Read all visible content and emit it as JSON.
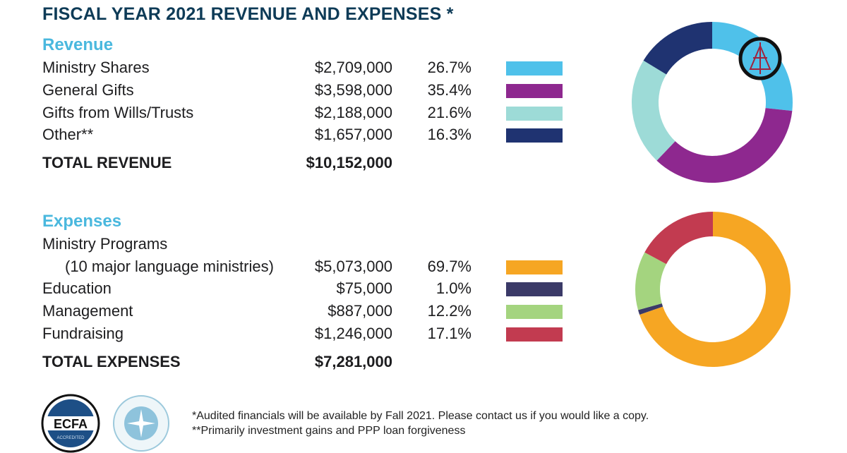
{
  "title": "FISCAL YEAR 2021 REVENUE AND EXPENSES *",
  "chart_data": [
    {
      "type": "pie",
      "title": "Revenue",
      "categories": [
        "Ministry Shares",
        "General Gifts",
        "Gifts from Wills/Trusts",
        "Other**"
      ],
      "amounts": [
        "$2,709,000",
        "$3,598,000",
        "$2,188,000",
        "$1,657,000"
      ],
      "percents": [
        "26.7%",
        "35.4%",
        "21.6%",
        "16.3%"
      ],
      "values": [
        26.7,
        35.4,
        21.6,
        16.3
      ],
      "colors": [
        "#4fc1ea",
        "#8e288f",
        "#9ddbd7",
        "#1f3371"
      ],
      "total_label": "TOTAL REVENUE",
      "total": "$10,152,000"
    },
    {
      "type": "pie",
      "title": "Expenses",
      "categories": [
        "Ministry Programs",
        "Education",
        "Management",
        "Fundraising"
      ],
      "category_sub": "(10 major language ministries)",
      "amounts": [
        "$5,073,000",
        "$75,000",
        "$887,000",
        "$1,246,000"
      ],
      "percents": [
        "69.7%",
        "1.0%",
        "12.2%",
        "17.1%"
      ],
      "values": [
        69.7,
        1.0,
        12.2,
        17.1
      ],
      "colors": [
        "#f6a623",
        "#3b3a68",
        "#a4d47f",
        "#c23b50"
      ],
      "total_label": "TOTAL EXPENSES",
      "total": "$7,281,000"
    }
  ],
  "footnotes": [
    "*Audited financials will be available by Fall 2021. Please contact us if you would like a copy.",
    "**Primarily investment gains and PPP loan forgiveness"
  ],
  "logos": {
    "ecfa": "ECFA",
    "ecfa_sub": "ACCREDITED",
    "guidestar": "GUIDESTAR PLATINUM TRANSPARENCY"
  }
}
